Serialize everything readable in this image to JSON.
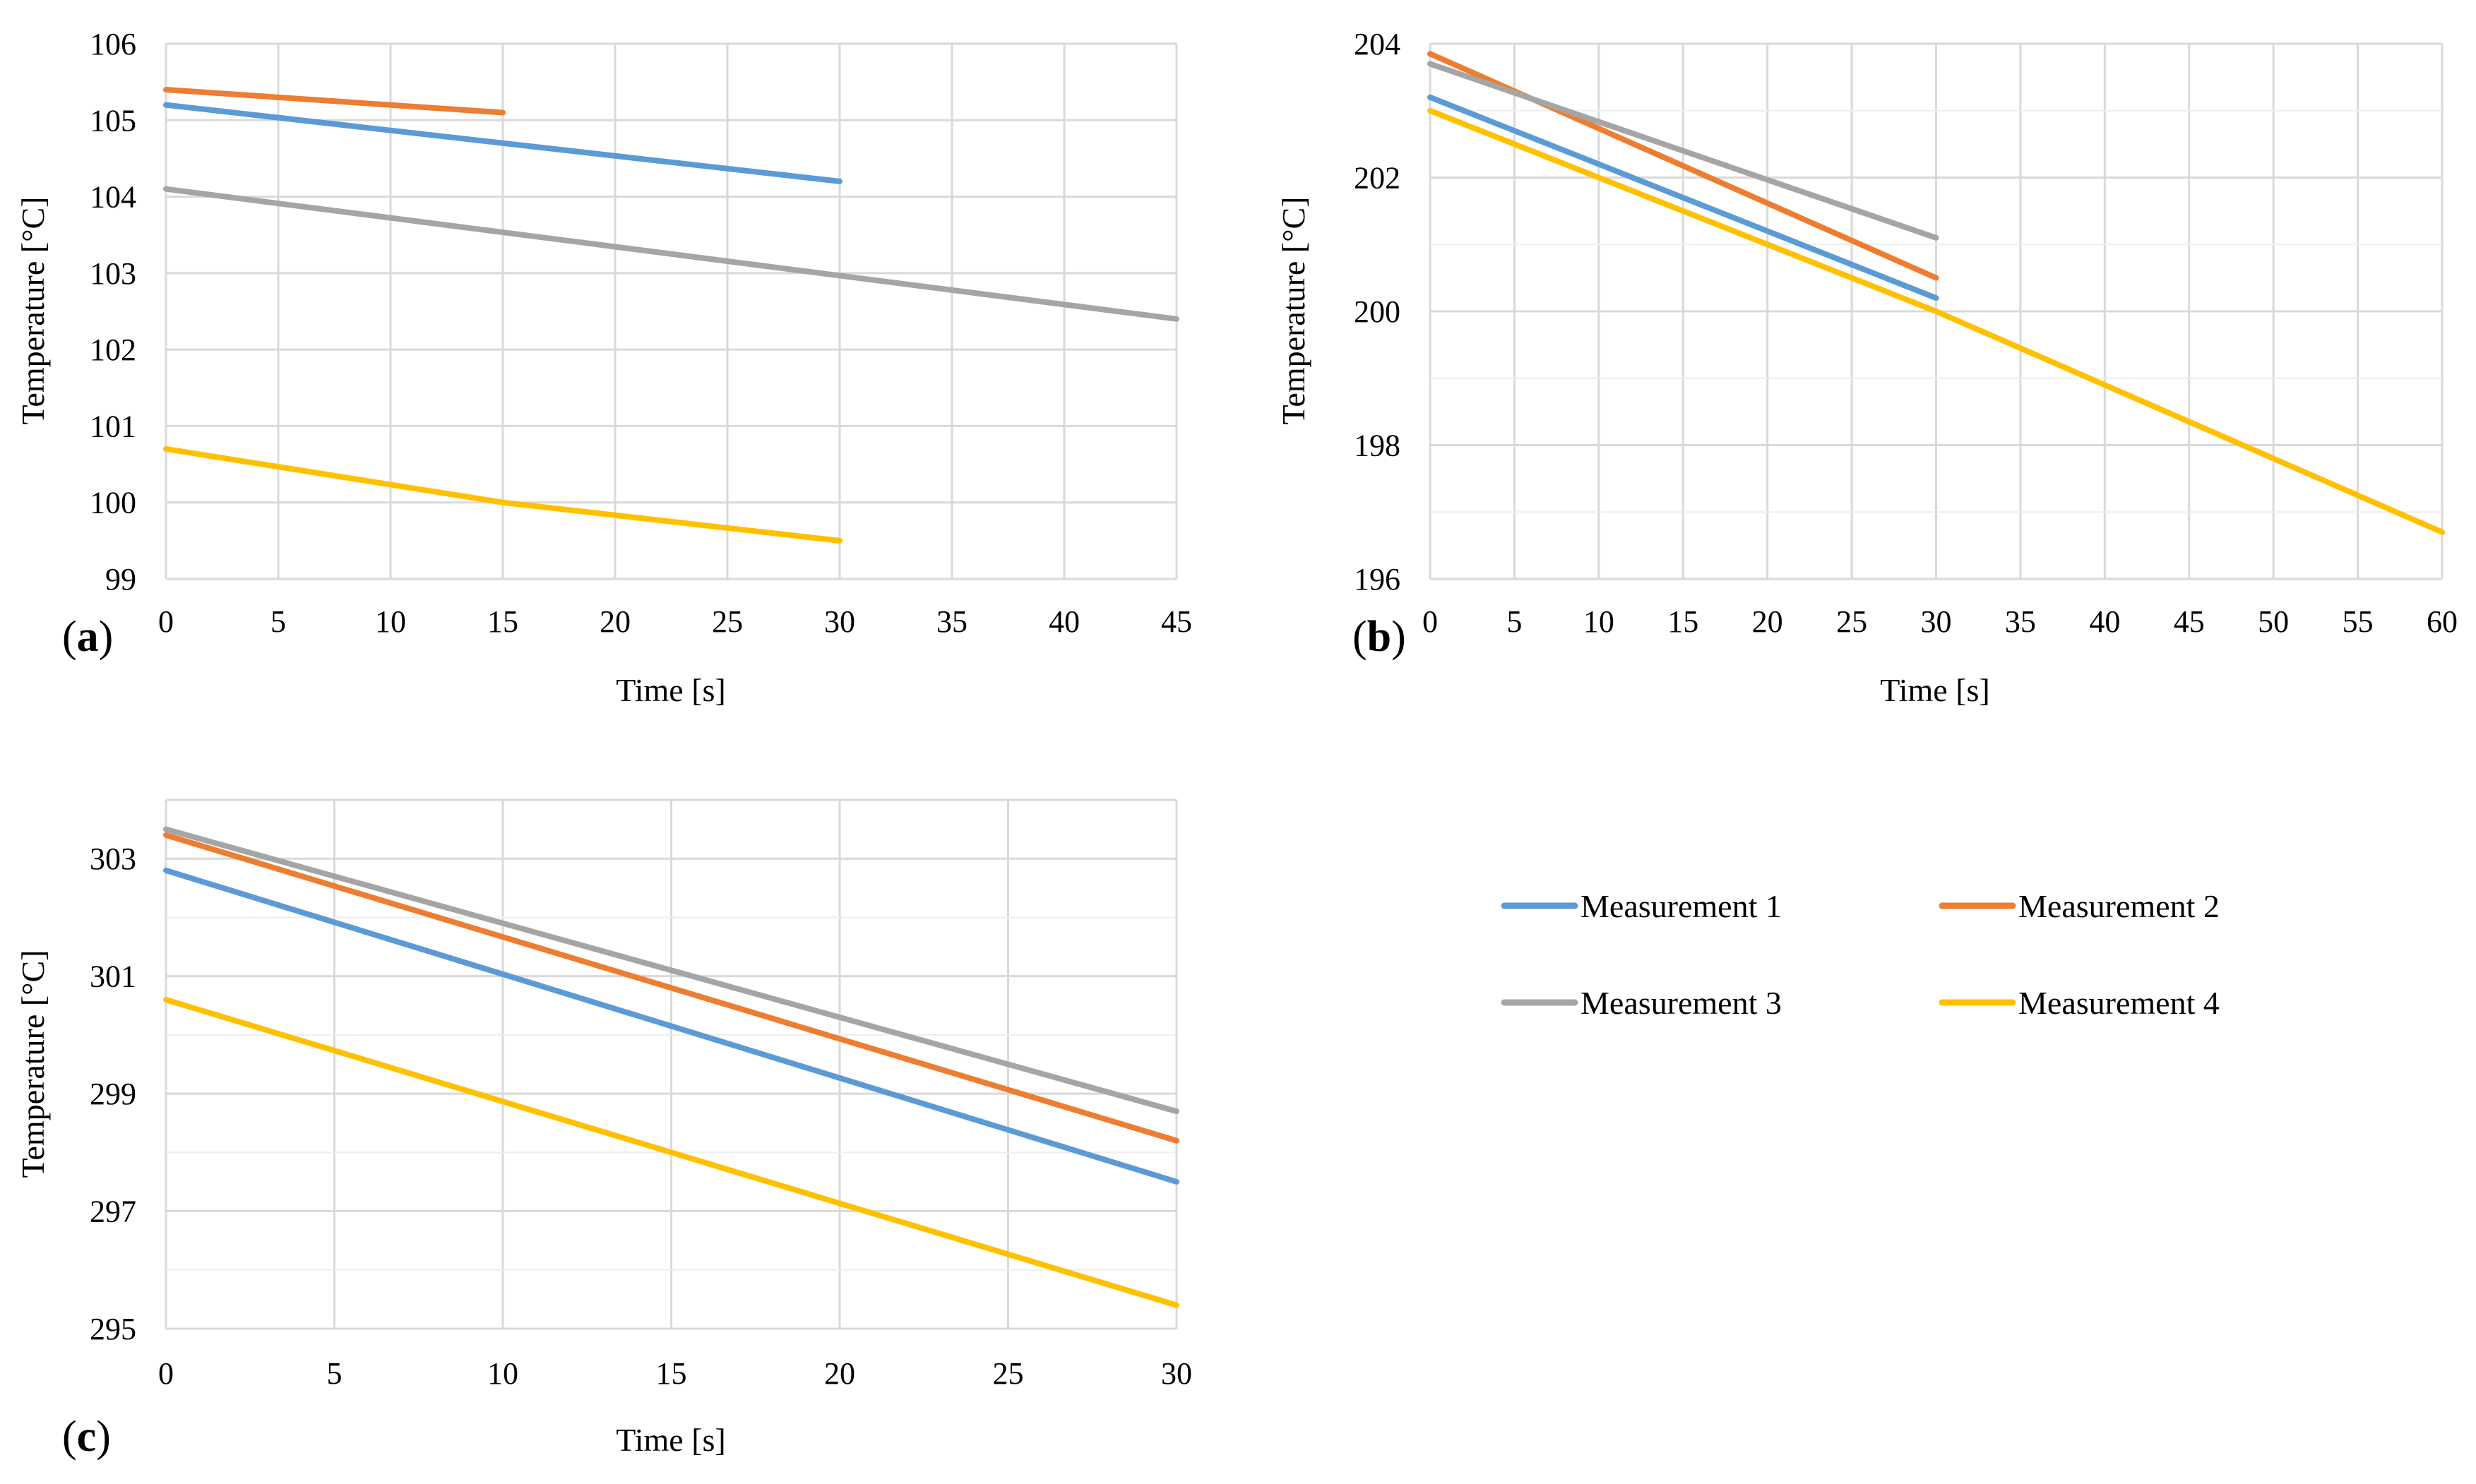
{
  "chart_data": [
    {
      "panel": "a",
      "label_text": "(a)",
      "type": "line",
      "xlabel": "Time [s]",
      "ylabel": "Temperature [°C]",
      "xlim": [
        0,
        45
      ],
      "ylim": [
        99,
        106
      ],
      "x_ticks": [
        0,
        5,
        10,
        15,
        20,
        25,
        30,
        35,
        40,
        45
      ],
      "y_ticks": [
        99,
        100,
        101,
        102,
        103,
        104,
        105,
        106
      ],
      "grid": true,
      "series": [
        {
          "name": "Measurement 1",
          "x": [
            0,
            30
          ],
          "y": [
            105.2,
            104.2
          ]
        },
        {
          "name": "Measurement 2",
          "x": [
            0,
            15
          ],
          "y": [
            105.4,
            105.1
          ]
        },
        {
          "name": "Measurement 3",
          "x": [
            0,
            45
          ],
          "y": [
            104.1,
            102.4
          ]
        },
        {
          "name": "Measurement 4",
          "x": [
            0,
            15,
            30
          ],
          "y": [
            100.7,
            100.0,
            99.5
          ]
        }
      ]
    },
    {
      "panel": "b",
      "label_text": "(b)",
      "type": "line",
      "xlabel": "Time [s]",
      "ylabel": "Temperature [°C]",
      "xlim": [
        0,
        60
      ],
      "ylim": [
        196,
        204
      ],
      "x_ticks": [
        0,
        5,
        10,
        15,
        20,
        25,
        30,
        35,
        40,
        45,
        50,
        55,
        60
      ],
      "y_ticks": [
        196,
        198,
        200,
        202,
        204
      ],
      "grid": true,
      "series": [
        {
          "name": "Measurement 1",
          "x": [
            0,
            30
          ],
          "y": [
            203.2,
            200.2
          ]
        },
        {
          "name": "Measurement 2",
          "x": [
            0,
            30
          ],
          "y": [
            203.85,
            200.5
          ]
        },
        {
          "name": "Measurement 3",
          "x": [
            0,
            30
          ],
          "y": [
            203.7,
            201.1
          ]
        },
        {
          "name": "Measurement 4",
          "x": [
            0,
            30,
            60
          ],
          "y": [
            203.0,
            200.0,
            196.7
          ]
        }
      ]
    },
    {
      "panel": "c",
      "label_text": "(c)",
      "type": "line",
      "xlabel": "Time [s]",
      "ylabel": "Temperature [°C]",
      "xlim": [
        0,
        30
      ],
      "ylim": [
        295,
        304
      ],
      "x_ticks": [
        0,
        5,
        10,
        15,
        20,
        25,
        30
      ],
      "y_ticks": [
        295,
        297,
        299,
        301,
        303
      ],
      "grid": true,
      "series": [
        {
          "name": "Measurement 1",
          "x": [
            0,
            30
          ],
          "y": [
            302.8,
            297.5
          ]
        },
        {
          "name": "Measurement 2",
          "x": [
            0,
            30
          ],
          "y": [
            303.4,
            298.2
          ]
        },
        {
          "name": "Measurement 3",
          "x": [
            0,
            30
          ],
          "y": [
            303.5,
            298.7
          ]
        },
        {
          "name": "Measurement 4",
          "x": [
            0,
            30
          ],
          "y": [
            300.6,
            295.4
          ]
        }
      ]
    }
  ],
  "legend": {
    "placement": "right of panel (c)",
    "items": [
      {
        "name": "Measurement 1",
        "color": "#5B9BD5"
      },
      {
        "name": "Measurement 2",
        "color": "#ED7D31"
      },
      {
        "name": "Measurement 3",
        "color": "#A5A5A5"
      },
      {
        "name": "Measurement 4",
        "color": "#FFC000"
      }
    ]
  }
}
